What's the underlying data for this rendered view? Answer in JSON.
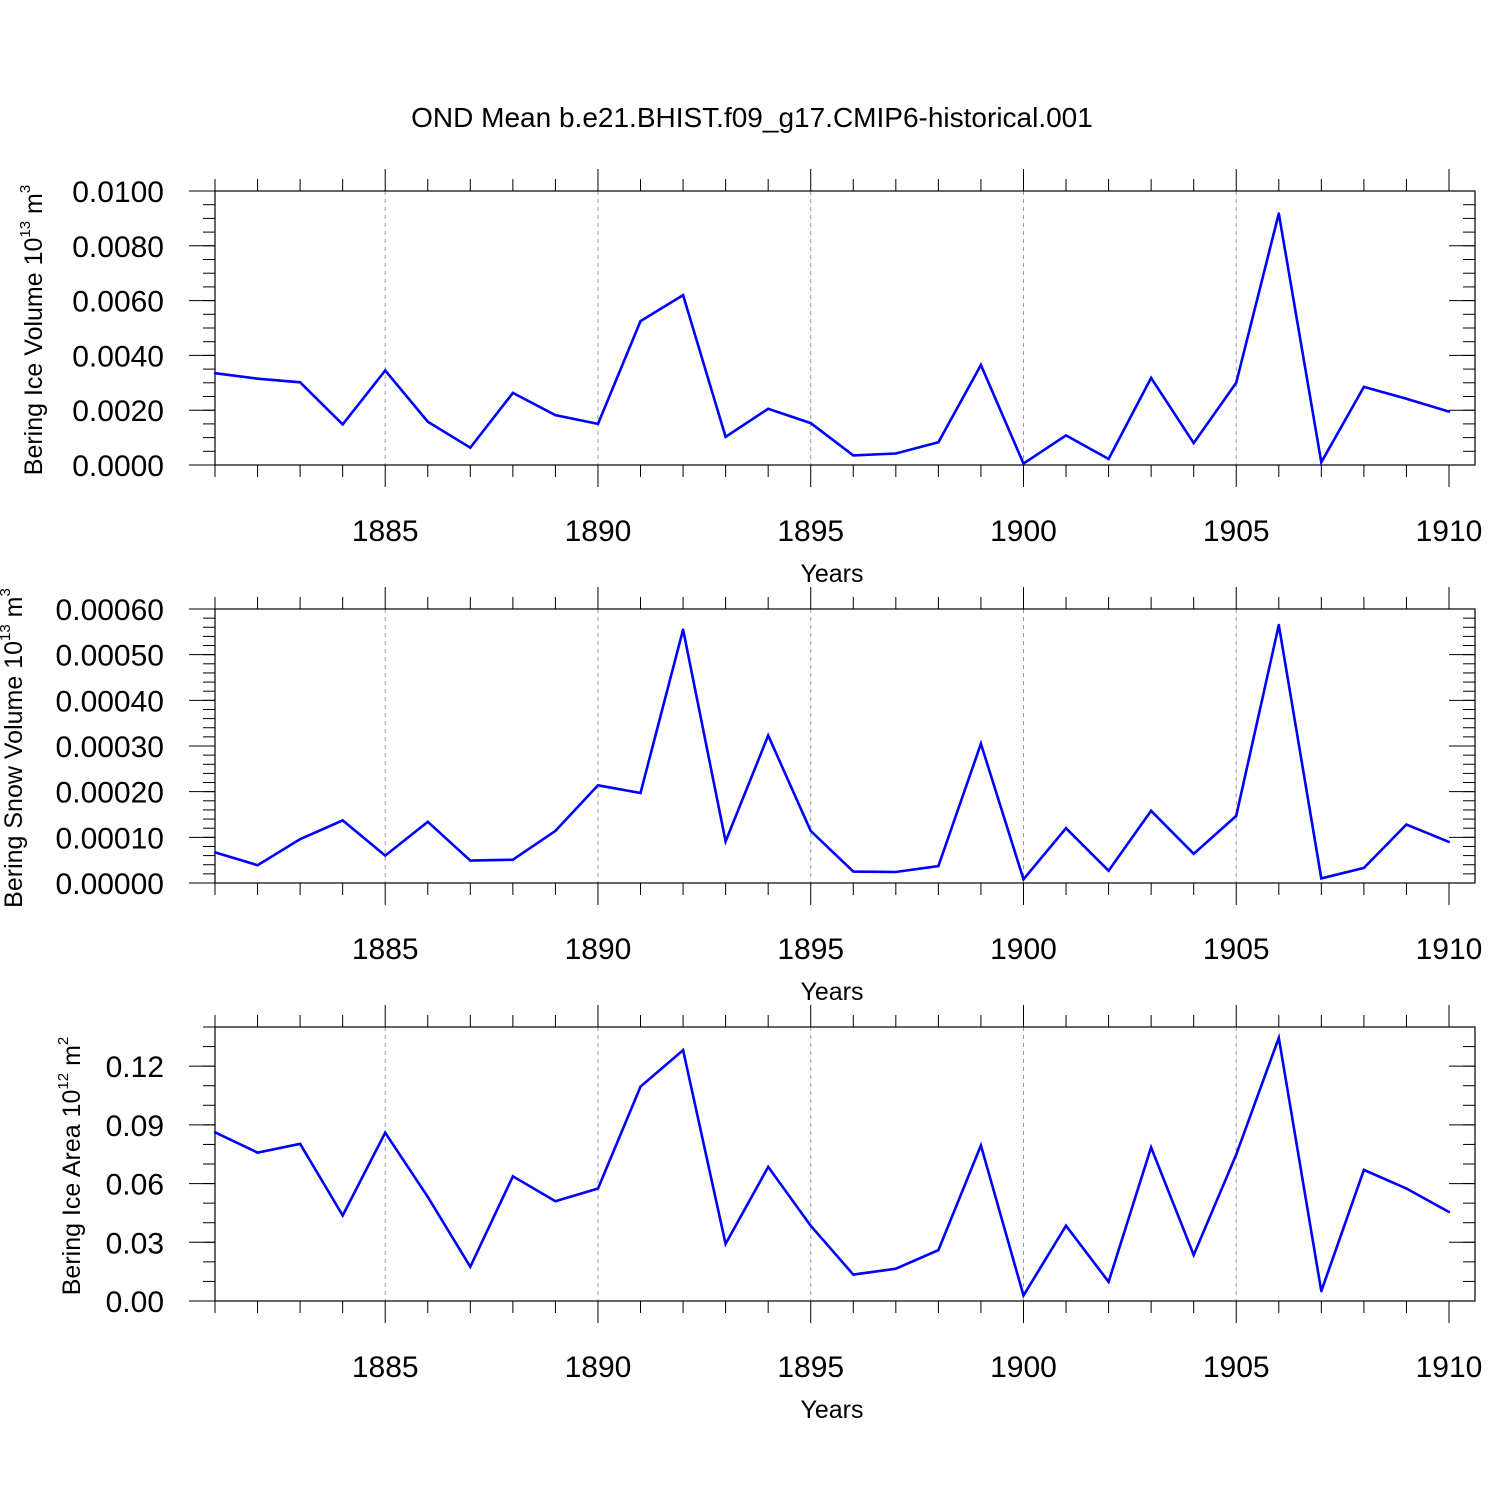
{
  "title": "OND Mean b.e21.BHIST.f09_g17.CMIP6-historical.001",
  "colors": {
    "series": "#0000ff",
    "axis": "#000000",
    "grid": "#999999"
  },
  "chart_data": [
    {
      "type": "line",
      "ylabel": {
        "text": "Bering Ice Volume 10",
        "sup": "13",
        "unit": " m",
        "unit_sup": "3"
      },
      "xlabel": "Years",
      "xlim": [
        1881,
        1910
      ],
      "ylim": [
        0,
        0.01
      ],
      "x_ticks": [
        1885,
        1890,
        1895,
        1900,
        1905,
        1910
      ],
      "x_tick_labels": [
        "1885",
        "1890",
        "1895",
        "1900",
        "1905",
        "1910"
      ],
      "y_ticks": [
        0,
        0.002,
        0.004,
        0.006,
        0.008,
        0.01
      ],
      "y_tick_labels": [
        "0.0000",
        "0.0020",
        "0.0040",
        "0.0060",
        "0.0080",
        "0.0100"
      ],
      "y_minor_step": 0.0005,
      "x": [
        1881,
        1882,
        1883,
        1884,
        1885,
        1886,
        1887,
        1888,
        1889,
        1890,
        1891,
        1892,
        1893,
        1894,
        1895,
        1896,
        1897,
        1898,
        1899,
        1900,
        1901,
        1902,
        1903,
        1904,
        1905,
        1906,
        1907,
        1908,
        1909,
        1910
      ],
      "values": [
        0.00335,
        0.00315,
        0.00302,
        0.00148,
        0.00345,
        0.00158,
        0.00063,
        0.00263,
        0.00182,
        0.0015,
        0.00525,
        0.0062,
        0.00103,
        0.00205,
        0.00153,
        0.00035,
        0.00042,
        0.00083,
        0.00365,
        5e-05,
        0.00108,
        0.00022,
        0.00318,
        0.0008,
        0.003,
        0.00918,
        0.0001,
        0.00285,
        0.00242,
        0.00195
      ]
    },
    {
      "type": "line",
      "ylabel": {
        "text": "Bering Snow Volume 10",
        "sup": "13",
        "unit": " m",
        "unit_sup": "3"
      },
      "xlabel": "Years",
      "xlim": [
        1881,
        1910
      ],
      "ylim": [
        0,
        0.0006
      ],
      "x_ticks": [
        1885,
        1890,
        1895,
        1900,
        1905,
        1910
      ],
      "x_tick_labels": [
        "1885",
        "1890",
        "1895",
        "1900",
        "1905",
        "1910"
      ],
      "y_ticks": [
        0,
        0.0001,
        0.0002,
        0.0003,
        0.0004,
        0.0005,
        0.0006
      ],
      "y_tick_labels": [
        "0.00000",
        "0.00010",
        "0.00020",
        "0.00030",
        "0.00040",
        "0.00050",
        "0.00060"
      ],
      "y_minor_step": 2e-05,
      "x": [
        1881,
        1882,
        1883,
        1884,
        1885,
        1886,
        1887,
        1888,
        1889,
        1890,
        1891,
        1892,
        1893,
        1894,
        1895,
        1896,
        1897,
        1898,
        1899,
        1900,
        1901,
        1902,
        1903,
        1904,
        1905,
        1906,
        1907,
        1908,
        1909,
        1910
      ],
      "values": [
        6.7e-05,
        3.9e-05,
        9.6e-05,
        0.000137,
        6e-05,
        0.000134,
        4.9e-05,
        5.1e-05,
        0.000114,
        0.000214,
        0.000197,
        0.000555,
        9.1e-05,
        0.000323,
        0.000114,
        2.5e-05,
        2.4e-05,
        3.7e-05,
        0.000305,
        8e-06,
        0.00012,
        2.7e-05,
        0.000158,
        6.4e-05,
        0.000147,
        0.000565,
        1e-05,
        3.3e-05,
        0.000128,
        9e-05
      ]
    },
    {
      "type": "line",
      "ylabel": {
        "text": "Bering Ice Area 10",
        "sup": "12",
        "unit": " m",
        "unit_sup": "2"
      },
      "xlabel": "Years",
      "xlim": [
        1881,
        1910
      ],
      "ylim": [
        0,
        0.14
      ],
      "x_ticks": [
        1885,
        1890,
        1895,
        1900,
        1905,
        1910
      ],
      "x_tick_labels": [
        "1885",
        "1890",
        "1895",
        "1900",
        "1905",
        "1910"
      ],
      "y_ticks": [
        0,
        0.03,
        0.06,
        0.09,
        0.12
      ],
      "y_tick_labels": [
        "0.00",
        "0.03",
        "0.06",
        "0.09",
        "0.12"
      ],
      "y_minor_step": 0.01,
      "x": [
        1881,
        1882,
        1883,
        1884,
        1885,
        1886,
        1887,
        1888,
        1889,
        1890,
        1891,
        1892,
        1893,
        1894,
        1895,
        1896,
        1897,
        1898,
        1899,
        1900,
        1901,
        1902,
        1903,
        1904,
        1905,
        1906,
        1907,
        1908,
        1909,
        1910
      ],
      "values": [
        0.0862,
        0.0758,
        0.0803,
        0.0437,
        0.086,
        0.0532,
        0.0175,
        0.0637,
        0.051,
        0.0575,
        0.1095,
        0.1282,
        0.0292,
        0.0685,
        0.0385,
        0.0135,
        0.0165,
        0.026,
        0.0795,
        0.0028,
        0.0385,
        0.0098,
        0.0785,
        0.0235,
        0.0748,
        0.1345,
        0.005,
        0.067,
        0.0575,
        0.0455
      ]
    }
  ]
}
